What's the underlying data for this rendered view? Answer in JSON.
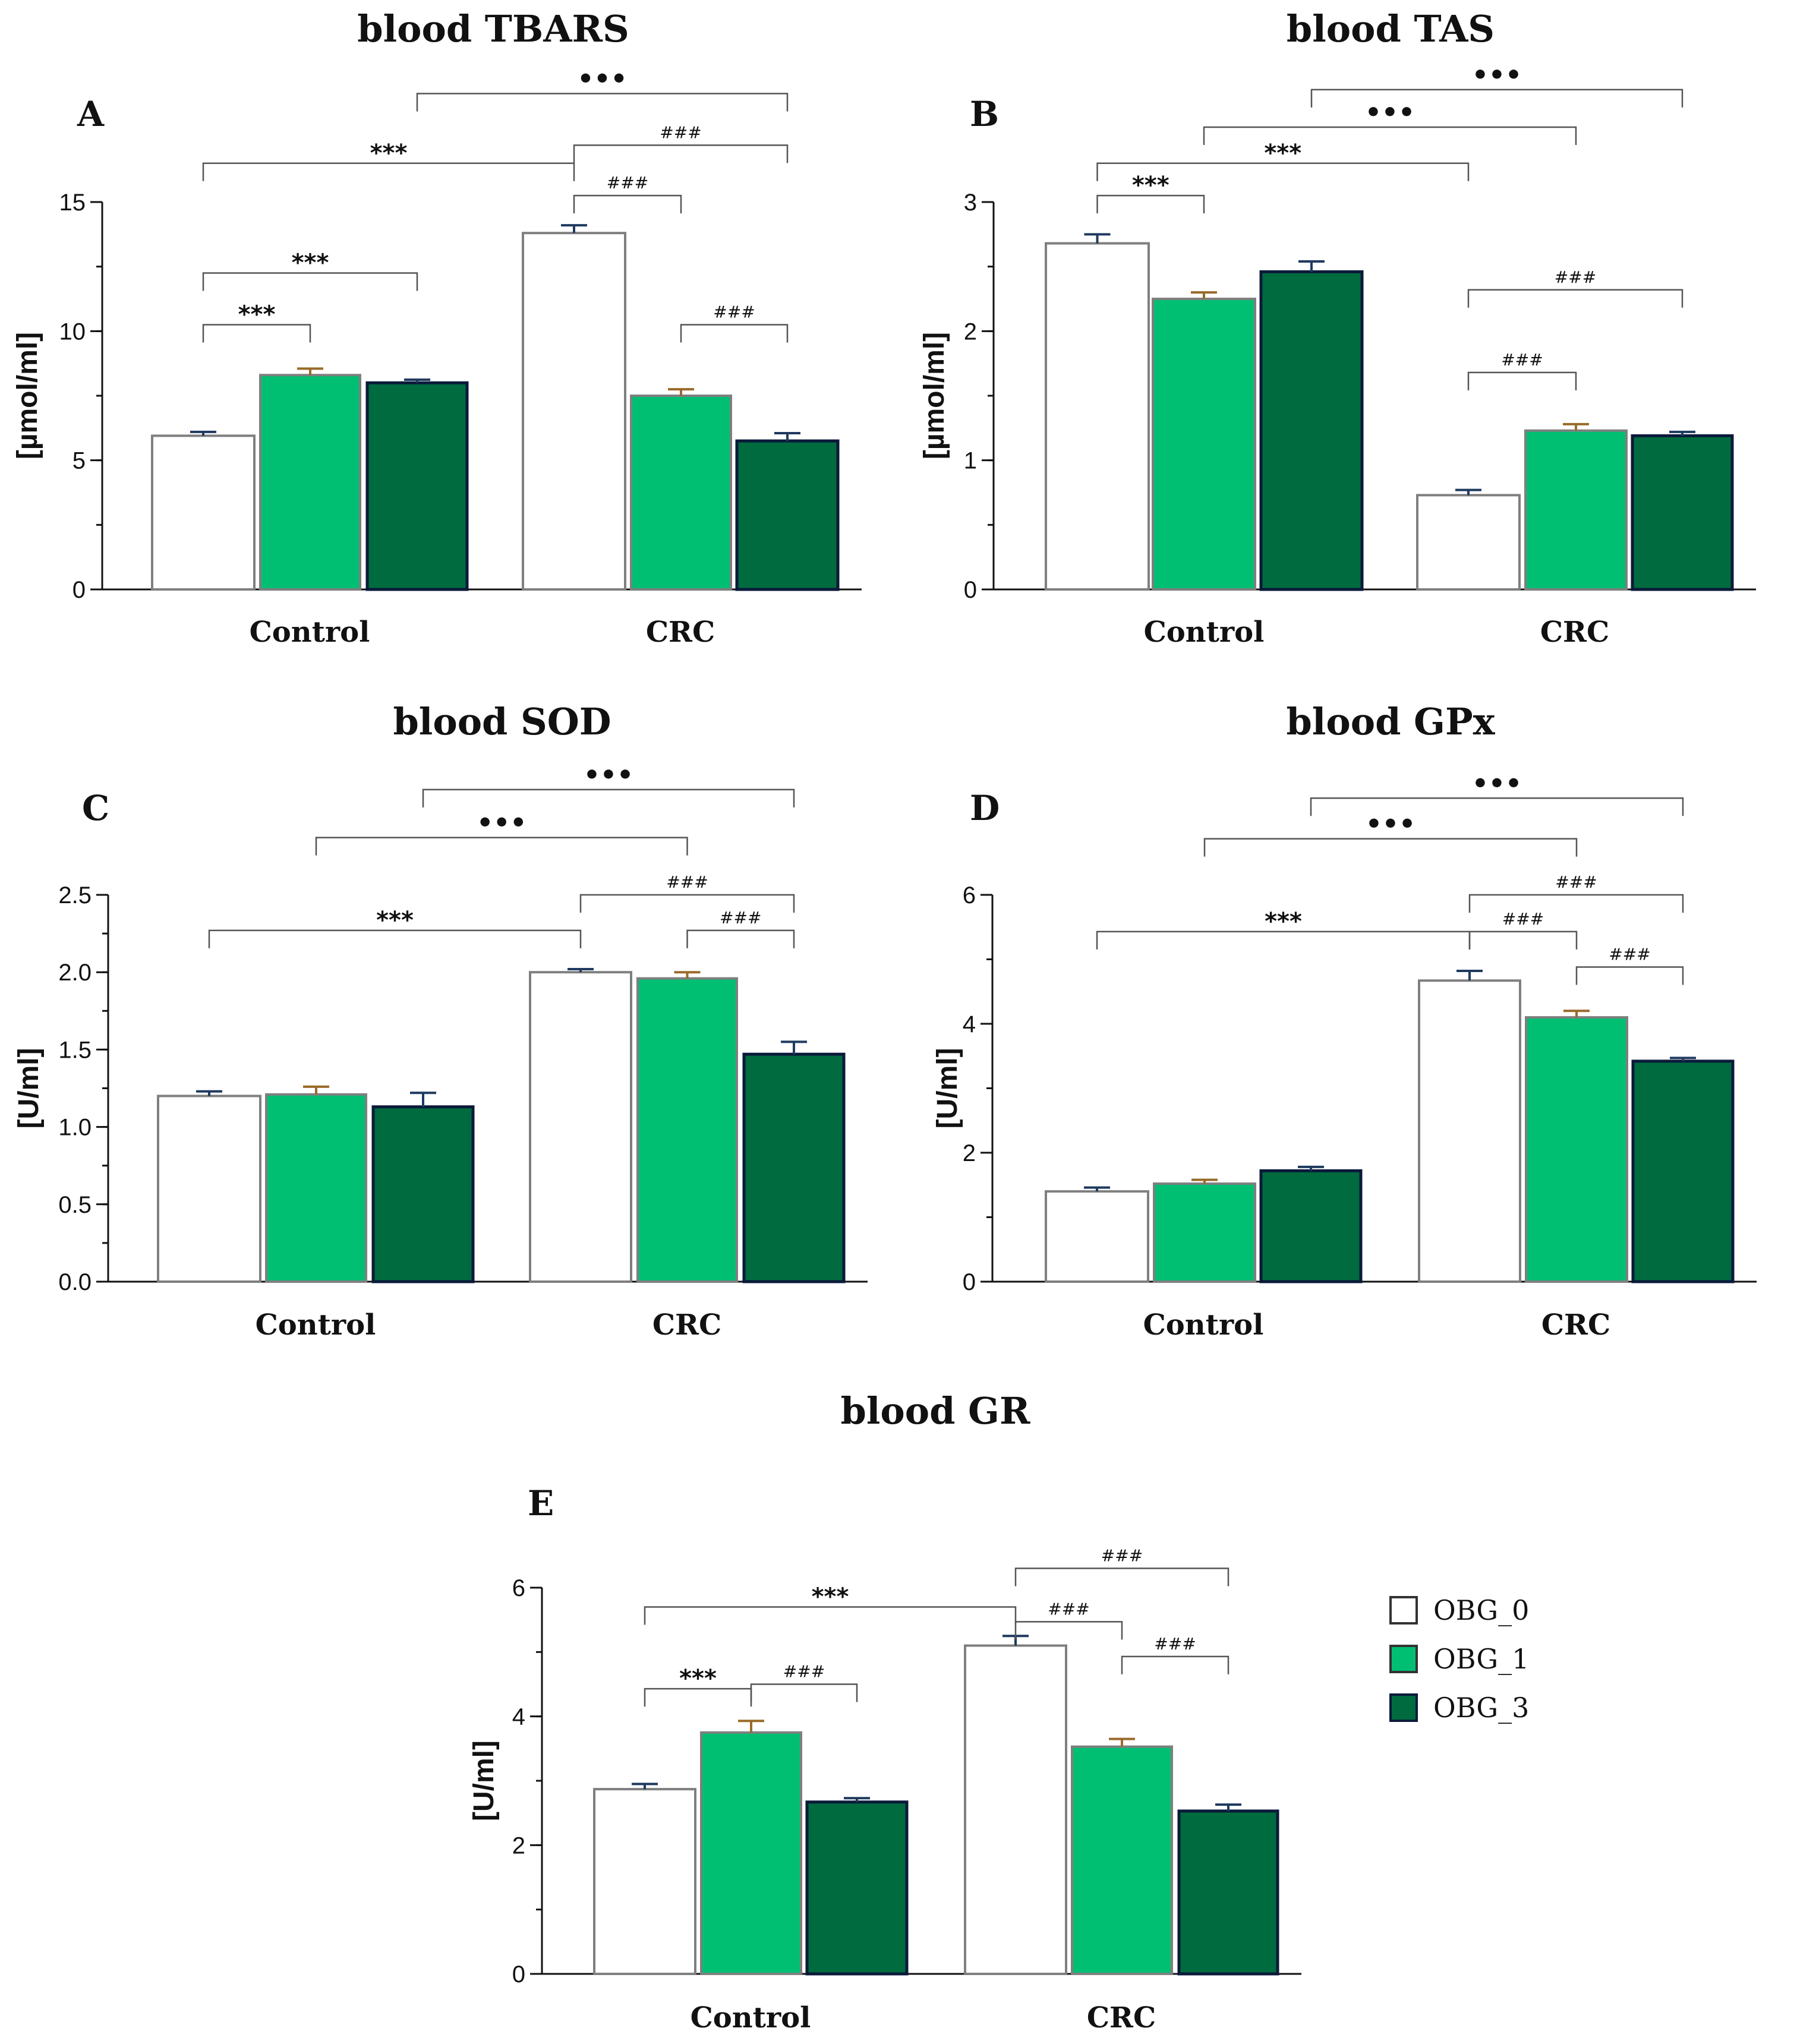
{
  "series": [
    {
      "name": "OBG_0",
      "color": "#ffffff",
      "stroke": "#7f7f7f",
      "err_color": "#1f3a5f"
    },
    {
      "name": "OBG_1",
      "color": "#00bf73",
      "stroke": "#7f7f7f",
      "err_color": "#9a6a2a"
    },
    {
      "name": "OBG_3",
      "color": "#006b3f",
      "stroke": "#0b1a3a",
      "err_color": "#1f3a5f"
    }
  ],
  "legend": {
    "items": [
      "OBG_0",
      " OBG_1",
      "OBG_3"
    ]
  },
  "chart_data": [
    {
      "type": "bar",
      "letter": "A",
      "title": "blood TBARS",
      "ylabel": "[µmol/ml]",
      "categories": [
        "Control",
        "CRC"
      ],
      "ylim": [
        0,
        15
      ],
      "yticks": [
        0,
        5,
        10,
        15
      ],
      "ytick_labels": [
        "0",
        "5",
        "10",
        "15"
      ],
      "minor_step": 2.5,
      "series": [
        {
          "name": "OBG_0",
          "values": [
            5.95,
            13.8
          ],
          "errors": [
            0.15,
            0.3
          ]
        },
        {
          "name": "OBG_1",
          "values": [
            8.3,
            7.5
          ],
          "errors": [
            0.25,
            0.25
          ]
        },
        {
          "name": "OBG_3",
          "values": [
            8.0,
            5.75
          ],
          "errors": [
            0.12,
            0.3
          ]
        }
      ],
      "brackets": [
        {
          "from": [
            0,
            0
          ],
          "to": [
            0,
            1
          ],
          "y": 10.25,
          "label": "***",
          "kind": "star"
        },
        {
          "from": [
            0,
            0
          ],
          "to": [
            0,
            2
          ],
          "y": 12.25,
          "label": "***",
          "kind": "star"
        },
        {
          "from": [
            0,
            0
          ],
          "to": [
            1,
            0
          ],
          "y": 16.5,
          "label": "***",
          "kind": "star"
        },
        {
          "from": [
            0,
            2
          ],
          "to": [
            1,
            2
          ],
          "y": 19.2,
          "label": "•••",
          "kind": "dot"
        },
        {
          "from": [
            1,
            0
          ],
          "to": [
            1,
            1
          ],
          "y": 15.25,
          "label": "###",
          "kind": "hash"
        },
        {
          "from": [
            1,
            0
          ],
          "to": [
            1,
            2
          ],
          "y": 17.2,
          "label": "###",
          "kind": "hash"
        },
        {
          "from": [
            1,
            1
          ],
          "to": [
            1,
            2
          ],
          "y": 10.25,
          "label": "###",
          "kind": "hash"
        }
      ]
    },
    {
      "type": "bar",
      "letter": "B",
      "title": "blood TAS",
      "ylabel": "[µmol/ml]",
      "categories": [
        "Control",
        "CRC"
      ],
      "ylim": [
        0,
        3
      ],
      "yticks": [
        0,
        1,
        2,
        3
      ],
      "ytick_labels": [
        "0",
        "1",
        "2",
        "3"
      ],
      "minor_step": 0.5,
      "series": [
        {
          "name": "OBG_0",
          "values": [
            2.68,
            0.73
          ],
          "errors": [
            0.07,
            0.04
          ]
        },
        {
          "name": "OBG_1",
          "values": [
            2.25,
            1.23
          ],
          "errors": [
            0.05,
            0.05
          ]
        },
        {
          "name": "OBG_3",
          "values": [
            2.46,
            1.19
          ],
          "errors": [
            0.08,
            0.03
          ]
        }
      ],
      "brackets": [
        {
          "from": [
            0,
            0
          ],
          "to": [
            0,
            1
          ],
          "y": 3.05,
          "label": "***",
          "kind": "star"
        },
        {
          "from": [
            0,
            0
          ],
          "to": [
            1,
            0
          ],
          "y": 3.3,
          "label": "***",
          "kind": "star"
        },
        {
          "from": [
            0,
            1
          ],
          "to": [
            1,
            1
          ],
          "y": 3.58,
          "label": "•••",
          "kind": "dot"
        },
        {
          "from": [
            0,
            2
          ],
          "to": [
            1,
            2
          ],
          "y": 3.87,
          "label": "•••",
          "kind": "dot"
        },
        {
          "from": [
            1,
            0
          ],
          "to": [
            1,
            1
          ],
          "y": 1.68,
          "label": "###",
          "kind": "hash"
        },
        {
          "from": [
            1,
            0
          ],
          "to": [
            1,
            2
          ],
          "y": 2.32,
          "label": "###",
          "kind": "hash"
        }
      ]
    },
    {
      "type": "bar",
      "letter": "C",
      "title": "blood SOD",
      "ylabel": "[U/ml]",
      "categories": [
        "Control",
        "CRC"
      ],
      "ylim": [
        0,
        2.5
      ],
      "yticks": [
        0,
        0.5,
        1.0,
        1.5,
        2.0,
        2.5
      ],
      "ytick_labels": [
        "0.0",
        "0.5",
        "1.0",
        "1.5",
        "2.0",
        "2.5"
      ],
      "minor_step": 0.25,
      "series": [
        {
          "name": "OBG_0",
          "values": [
            1.2,
            2.0
          ],
          "errors": [
            0.03,
            0.02
          ]
        },
        {
          "name": "OBG_1",
          "values": [
            1.21,
            1.96
          ],
          "errors": [
            0.05,
            0.04
          ]
        },
        {
          "name": "OBG_3",
          "values": [
            1.13,
            1.47
          ],
          "errors": [
            0.09,
            0.08
          ]
        }
      ],
      "brackets": [
        {
          "from": [
            0,
            0
          ],
          "to": [
            1,
            0
          ],
          "y": 2.27,
          "label": "***",
          "kind": "star"
        },
        {
          "from": [
            0,
            1
          ],
          "to": [
            1,
            1
          ],
          "y": 2.87,
          "label": "•••",
          "kind": "dot"
        },
        {
          "from": [
            0,
            2
          ],
          "to": [
            1,
            2
          ],
          "y": 3.18,
          "label": "•••",
          "kind": "dot"
        },
        {
          "from": [
            1,
            0
          ],
          "to": [
            1,
            2
          ],
          "y": 2.5,
          "label": "###",
          "kind": "hash"
        },
        {
          "from": [
            1,
            1
          ],
          "to": [
            1,
            2
          ],
          "y": 2.27,
          "label": "###",
          "kind": "hash"
        }
      ]
    },
    {
      "type": "bar",
      "letter": "D",
      "title": "blood GPx",
      "ylabel": "[U/ml]",
      "categories": [
        "Control",
        "CRC"
      ],
      "ylim": [
        0,
        6
      ],
      "yticks": [
        0,
        2,
        4,
        6
      ],
      "ytick_labels": [
        "0",
        "2",
        "4",
        "6"
      ],
      "minor_step": 1,
      "series": [
        {
          "name": "OBG_0",
          "values": [
            1.4,
            4.67
          ],
          "errors": [
            0.06,
            0.15
          ]
        },
        {
          "name": "OBG_1",
          "values": [
            1.52,
            4.1
          ],
          "errors": [
            0.06,
            0.1
          ]
        },
        {
          "name": "OBG_3",
          "values": [
            1.72,
            3.42
          ],
          "errors": [
            0.06,
            0.05
          ]
        }
      ],
      "brackets": [
        {
          "from": [
            0,
            0
          ],
          "to": [
            1,
            0
          ],
          "y": 5.43,
          "label": "***",
          "kind": "star"
        },
        {
          "from": [
            0,
            1
          ],
          "to": [
            1,
            1
          ],
          "y": 6.87,
          "label": "•••",
          "kind": "dot"
        },
        {
          "from": [
            0,
            2
          ],
          "to": [
            1,
            2
          ],
          "y": 7.5,
          "label": "•••",
          "kind": "dot"
        },
        {
          "from": [
            1,
            0
          ],
          "to": [
            1,
            1
          ],
          "y": 5.43,
          "label": "###",
          "kind": "hash"
        },
        {
          "from": [
            1,
            0
          ],
          "to": [
            1,
            2
          ],
          "y": 6.0,
          "label": "###",
          "kind": "hash"
        },
        {
          "from": [
            1,
            1
          ],
          "to": [
            1,
            2
          ],
          "y": 4.88,
          "label": "###",
          "kind": "hash"
        }
      ]
    },
    {
      "type": "bar",
      "letter": "E",
      "title": "blood GR",
      "ylabel": "[U/ml]",
      "categories": [
        "Control",
        "CRC"
      ],
      "ylim": [
        0,
        6
      ],
      "yticks": [
        0,
        2,
        4,
        6
      ],
      "ytick_labels": [
        "0",
        "2",
        "4",
        "6"
      ],
      "minor_step": 1,
      "series": [
        {
          "name": "OBG_0",
          "values": [
            2.87,
            5.1
          ],
          "errors": [
            0.08,
            0.15
          ]
        },
        {
          "name": "OBG_1",
          "values": [
            3.75,
            3.53
          ],
          "errors": [
            0.18,
            0.12
          ]
        },
        {
          "name": "OBG_3",
          "values": [
            2.67,
            2.53
          ],
          "errors": [
            0.06,
            0.1
          ]
        }
      ],
      "brackets": [
        {
          "from": [
            0,
            0
          ],
          "to": [
            0,
            1
          ],
          "y": 4.43,
          "label": "***",
          "kind": "star"
        },
        {
          "from": [
            0,
            0
          ],
          "to": [
            1,
            0
          ],
          "y": 5.7,
          "label": "***",
          "kind": "star"
        },
        {
          "from": [
            0,
            1
          ],
          "to": [
            0,
            2
          ],
          "y": 4.5,
          "label": "###",
          "kind": "hash"
        },
        {
          "from": [
            1,
            0
          ],
          "to": [
            1,
            1
          ],
          "y": 5.47,
          "label": "###",
          "kind": "hash"
        },
        {
          "from": [
            1,
            0
          ],
          "to": [
            1,
            2
          ],
          "y": 6.3,
          "label": "###",
          "kind": "hash"
        },
        {
          "from": [
            1,
            1
          ],
          "to": [
            1,
            2
          ],
          "y": 4.93,
          "label": "###",
          "kind": "hash"
        }
      ]
    }
  ]
}
